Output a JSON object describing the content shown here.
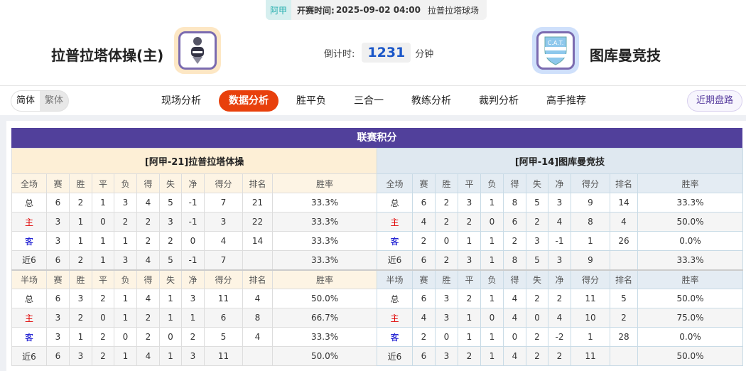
{
  "match": {
    "league": "阿甲",
    "time_label": "开赛时间:",
    "time": "2025-09-02 04:00",
    "venue": "拉普拉塔球场",
    "home": "拉普拉塔体操(主)",
    "away": "图库曼竞技",
    "countdown_label": "倒计时:",
    "countdown": "1231",
    "countdown_unit": "分钟"
  },
  "lang": {
    "simplified": "简体",
    "traditional": "繁体"
  },
  "tabs": [
    {
      "label": "现场分析"
    },
    {
      "label": "数据分析",
      "active": true
    },
    {
      "label": "胜平负"
    },
    {
      "label": "三合一"
    },
    {
      "label": "教练分析"
    },
    {
      "label": "裁判分析"
    },
    {
      "label": "高手推荐"
    }
  ],
  "recent_button": "近期盘路",
  "colors": {
    "accent": "#e8400c",
    "header": "#51409b",
    "home_row": "#e00000",
    "away_row": "#0000cc"
  },
  "standings": {
    "title": "联赛积分",
    "home": {
      "team": "[阿甲-21]拉普拉塔体操",
      "full": {
        "headers": [
          "全场",
          "赛",
          "胜",
          "平",
          "负",
          "得",
          "失",
          "净",
          "得分",
          "排名",
          "胜率"
        ],
        "rows": [
          [
            "总",
            "6",
            "2",
            "1",
            "3",
            "4",
            "5",
            "-1",
            "7",
            "21",
            "33.3%"
          ],
          [
            "主",
            "3",
            "1",
            "0",
            "2",
            "2",
            "3",
            "-1",
            "3",
            "22",
            "33.3%"
          ],
          [
            "客",
            "3",
            "1",
            "1",
            "1",
            "2",
            "2",
            "0",
            "4",
            "14",
            "33.3%"
          ],
          [
            "近6",
            "6",
            "2",
            "1",
            "3",
            "4",
            "5",
            "-1",
            "7",
            "",
            "33.3%"
          ]
        ]
      },
      "half": {
        "headers": [
          "半场",
          "赛",
          "胜",
          "平",
          "负",
          "得",
          "失",
          "净",
          "得分",
          "排名",
          "胜率"
        ],
        "rows": [
          [
            "总",
            "6",
            "3",
            "2",
            "1",
            "4",
            "1",
            "3",
            "11",
            "4",
            "50.0%"
          ],
          [
            "主",
            "3",
            "2",
            "0",
            "1",
            "2",
            "1",
            "1",
            "6",
            "8",
            "66.7%"
          ],
          [
            "客",
            "3",
            "1",
            "2",
            "0",
            "2",
            "0",
            "2",
            "5",
            "4",
            "33.3%"
          ],
          [
            "近6",
            "6",
            "3",
            "2",
            "1",
            "4",
            "1",
            "3",
            "11",
            "",
            "50.0%"
          ]
        ]
      }
    },
    "away": {
      "team": "[阿甲-14]图库曼竞技",
      "full": {
        "headers": [
          "全场",
          "赛",
          "胜",
          "平",
          "负",
          "得",
          "失",
          "净",
          "得分",
          "排名",
          "胜率"
        ],
        "rows": [
          [
            "总",
            "6",
            "2",
            "3",
            "1",
            "8",
            "5",
            "3",
            "9",
            "14",
            "33.3%"
          ],
          [
            "主",
            "4",
            "2",
            "2",
            "0",
            "6",
            "2",
            "4",
            "8",
            "4",
            "50.0%"
          ],
          [
            "客",
            "2",
            "0",
            "1",
            "1",
            "2",
            "3",
            "-1",
            "1",
            "26",
            "0.0%"
          ],
          [
            "近6",
            "6",
            "2",
            "3",
            "1",
            "8",
            "5",
            "3",
            "9",
            "",
            "33.3%"
          ]
        ]
      },
      "half": {
        "headers": [
          "半场",
          "赛",
          "胜",
          "平",
          "负",
          "得",
          "失",
          "净",
          "得分",
          "排名",
          "胜率"
        ],
        "rows": [
          [
            "总",
            "6",
            "3",
            "2",
            "1",
            "4",
            "2",
            "2",
            "11",
            "5",
            "50.0%"
          ],
          [
            "主",
            "4",
            "3",
            "1",
            "0",
            "4",
            "0",
            "4",
            "10",
            "2",
            "75.0%"
          ],
          [
            "客",
            "2",
            "0",
            "1",
            "1",
            "0",
            "2",
            "-2",
            "1",
            "28",
            "0.0%"
          ],
          [
            "近6",
            "6",
            "3",
            "2",
            "1",
            "4",
            "2",
            "2",
            "11",
            "",
            "50.0%"
          ]
        ]
      }
    }
  }
}
